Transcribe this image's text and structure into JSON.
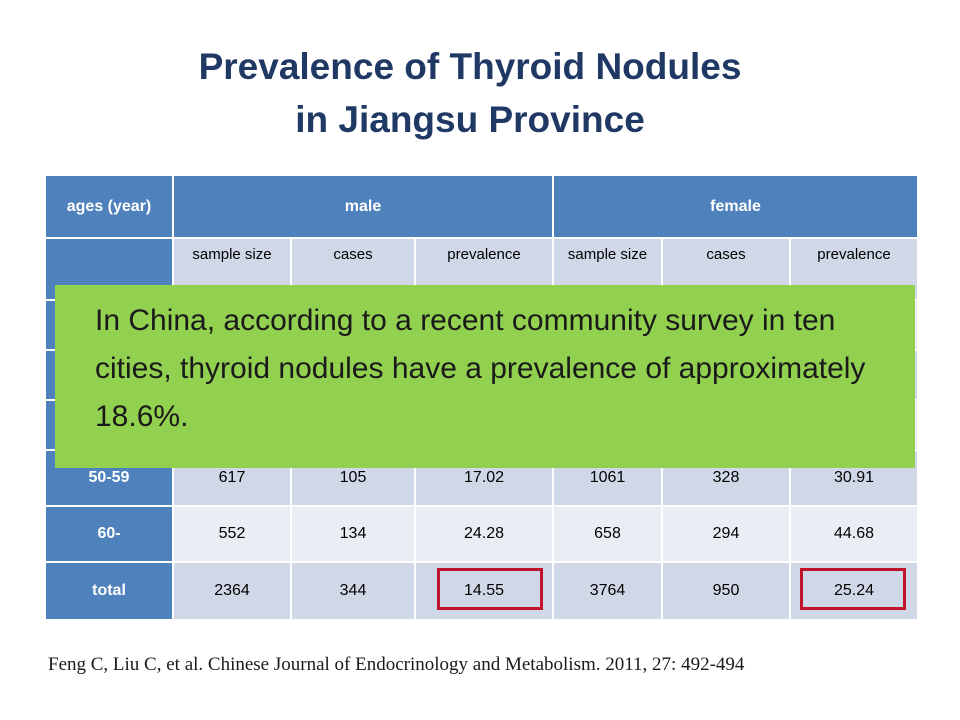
{
  "title": [
    "Prevalence of Thyroid Nodules",
    "in Jiangsu Province"
  ],
  "table": {
    "header": [
      "ages (year)",
      "male",
      "female"
    ],
    "subheader": [
      "sample size",
      "cases",
      "prevalence",
      "sample size",
      "cases",
      "prevalence"
    ],
    "rows": [
      [
        "50-59",
        "617",
        "105",
        "17.02",
        "1061",
        "328",
        "30.91"
      ],
      [
        "60-",
        "552",
        "134",
        "24.28",
        "658",
        "294",
        "44.68"
      ],
      [
        "total",
        "2364",
        "344",
        "14.55",
        "3764",
        "950",
        "25.24"
      ]
    ]
  },
  "callout": "In China, according to a recent community survey in ten cities, thyroid nodules have a prevalence of approximately 18.6%.",
  "citation": "Feng C, Liu C, et al. Chinese Journal of Endocrinology and Metabolism. 2011, 27: 492-494"
}
